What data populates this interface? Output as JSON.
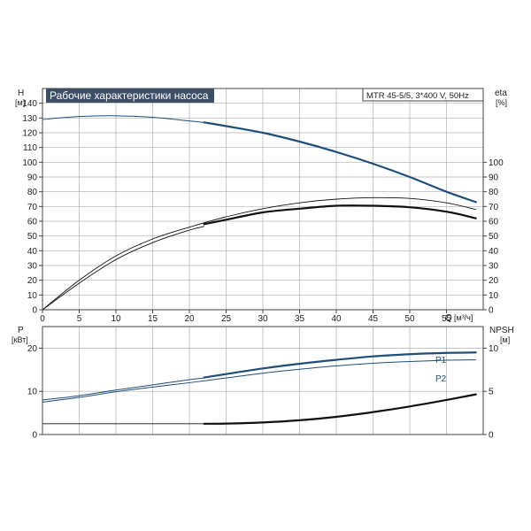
{
  "chart_data": [
    {
      "type": "line",
      "title": "Рабочие характеристики насоса",
      "subtitle": "MTR 45-5/5, 3*400 V, 50Hz",
      "xlabel": "Q",
      "xunit": "[м³/ч]",
      "ylabel": "H",
      "yunit": "[м]",
      "y2label": "eta",
      "y2unit": "[%]",
      "xlim": [
        0,
        60
      ],
      "ylim": [
        0,
        150
      ],
      "y2lim": [
        0,
        150
      ],
      "xticks": [
        "0",
        "5",
        "10",
        "15",
        "20",
        "25",
        "30",
        "35",
        "40",
        "45",
        "50",
        "55"
      ],
      "yticks": [
        "0",
        "10",
        "20",
        "30",
        "40",
        "50",
        "60",
        "70",
        "80",
        "90",
        "100",
        "110",
        "120",
        "130",
        "140"
      ],
      "y2ticks": [
        "0",
        "10",
        "20",
        "30",
        "40",
        "50",
        "60",
        "70",
        "80",
        "90",
        "100"
      ],
      "grid": true,
      "series": [
        {
          "axis": "left",
          "color": "#1f4e79",
          "width": 1.0,
          "x": [
            0,
            5,
            10,
            15,
            20,
            22
          ],
          "y": [
            129,
            131,
            131.5,
            130.5,
            128,
            127
          ]
        },
        {
          "axis": "left",
          "color": "#1f4e79",
          "width": 2.2,
          "x": [
            22,
            25,
            30,
            35,
            40,
            45,
            50,
            55,
            59
          ],
          "y": [
            127,
            124.5,
            120,
            114,
            107,
            99,
            90,
            80,
            73
          ]
        },
        {
          "axis": "right",
          "color": "#111111",
          "width": 0.9,
          "x": [
            0,
            5,
            10,
            15,
            20,
            25,
            30,
            35,
            40,
            45,
            50,
            55,
            59
          ],
          "y": [
            0,
            20,
            36.5,
            48,
            56,
            63,
            68.5,
            72.5,
            75,
            76,
            75.5,
            72.5,
            68
          ]
        },
        {
          "axis": "right",
          "color": "#111111",
          "width": 0.9,
          "x": [
            0,
            5,
            10,
            15,
            20,
            22
          ],
          "y": [
            0,
            18,
            34,
            45.5,
            54,
            56.5
          ]
        },
        {
          "axis": "right",
          "color": "#111111",
          "width": 2.2,
          "x": [
            22,
            25,
            30,
            35,
            40,
            45,
            50,
            55,
            59
          ],
          "y": [
            58,
            61,
            66,
            68.5,
            70.5,
            70.5,
            69.5,
            66.5,
            62
          ]
        }
      ]
    },
    {
      "type": "line",
      "xlim": [
        0,
        60
      ],
      "ylabel": "P",
      "yunit": "[кВт]",
      "y2label": "NPSH",
      "y2unit": "[м]",
      "ylim": [
        0,
        25
      ],
      "y2lim": [
        0,
        12.5
      ],
      "yticks": [
        "0",
        "10",
        "20"
      ],
      "y2ticks": [
        "0",
        "5",
        "10"
      ],
      "grid": true,
      "series_labels": [
        "P1",
        "P2"
      ],
      "series": [
        {
          "name": "P1",
          "axis": "left",
          "color": "#1f4e79",
          "width": 1.0,
          "x": [
            0,
            5,
            10,
            15,
            20,
            22
          ],
          "y": [
            8,
            9,
            10.3,
            11.5,
            12.7,
            13.1
          ]
        },
        {
          "name": "P1",
          "axis": "left",
          "color": "#1f4e79",
          "width": 2.2,
          "x": [
            22,
            25,
            30,
            35,
            40,
            45,
            50,
            55,
            59
          ],
          "y": [
            13.2,
            14,
            15.3,
            16.4,
            17.3,
            18.1,
            18.6,
            18.9,
            19
          ]
        },
        {
          "name": "P2",
          "axis": "left",
          "color": "#1f4e79",
          "width": 1.0,
          "x": [
            0,
            5,
            10,
            15,
            20,
            25,
            30,
            35,
            40,
            45,
            50,
            55,
            59
          ],
          "y": [
            7.5,
            8.6,
            9.9,
            11,
            12,
            13.1,
            14.2,
            15.1,
            15.9,
            16.5,
            16.9,
            17.2,
            17.3
          ]
        },
        {
          "axis": "right",
          "color": "#111111",
          "width": 0.9,
          "x": [
            0,
            5,
            10,
            15,
            20,
            22
          ],
          "y": [
            1.25,
            1.25,
            1.25,
            1.25,
            1.25,
            1.25
          ]
        },
        {
          "axis": "right",
          "color": "#111111",
          "width": 2.2,
          "x": [
            22,
            25,
            30,
            35,
            40,
            45,
            50,
            55,
            59
          ],
          "y": [
            1.25,
            1.27,
            1.4,
            1.65,
            2.05,
            2.6,
            3.25,
            4,
            4.65
          ]
        }
      ]
    }
  ]
}
